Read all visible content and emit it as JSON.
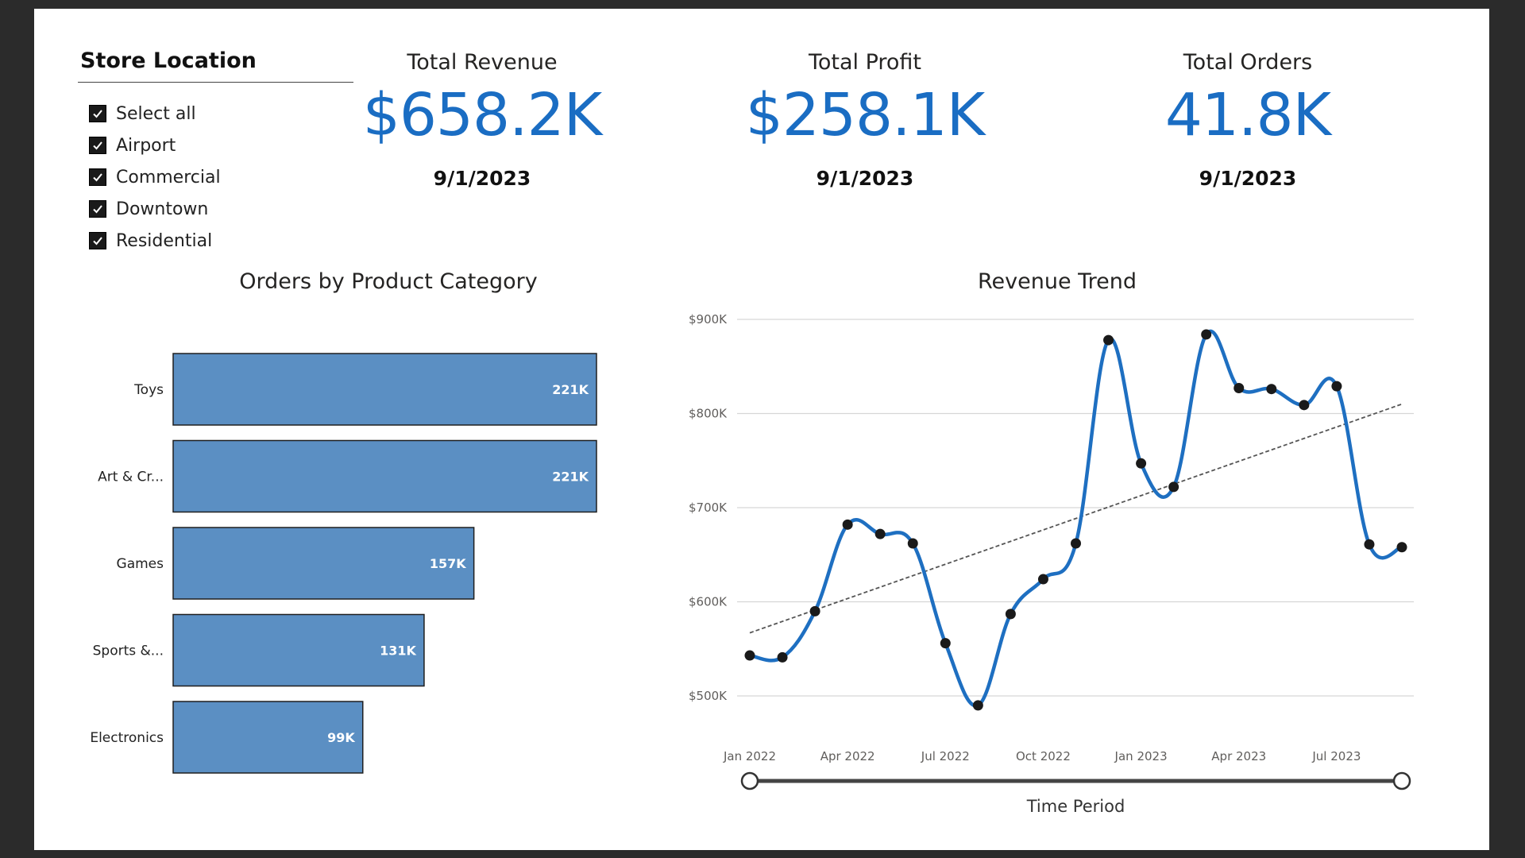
{
  "slicer": {
    "title": "Store Location",
    "items": [
      {
        "label": "Select all",
        "checked": true
      },
      {
        "label": "Airport",
        "checked": true
      },
      {
        "label": "Commercial",
        "checked": true
      },
      {
        "label": "Downtown",
        "checked": true
      },
      {
        "label": "Residential",
        "checked": true
      }
    ]
  },
  "kpis": [
    {
      "title": "Total Revenue",
      "value": "$658.2K",
      "date": "9/1/2023"
    },
    {
      "title": "Total Profit",
      "value": "$258.1K",
      "date": "9/1/2023"
    },
    {
      "title": "Total Orders",
      "value": "41.8K",
      "date": "9/1/2023"
    }
  ],
  "colors": {
    "accent": "#1a6dc3",
    "bar": "#5b8fc3",
    "line": "#1e6fc1"
  },
  "chart_data": [
    {
      "type": "bar",
      "title": "Orders by Product Category",
      "categories": [
        "Toys",
        "Art & Cr...",
        "Games",
        "Sports &...",
        "Electronics"
      ],
      "values": [
        221,
        221,
        157,
        131,
        99
      ],
      "data_labels": [
        "221K",
        "221K",
        "157K",
        "131K",
        "99K"
      ],
      "xlim": [
        0,
        221
      ]
    },
    {
      "type": "line",
      "title": "Revenue Trend",
      "xlabel": "Time Period",
      "x_ticks": [
        "Jan 2022",
        "Apr 2022",
        "Jul 2022",
        "Oct 2022",
        "Jan 2023",
        "Apr 2023",
        "Jul 2023"
      ],
      "y_ticks": [
        "$900K",
        "$800K",
        "$700K",
        "$600K",
        "$500K"
      ],
      "y_tick_values": [
        900,
        800,
        700,
        600,
        500
      ],
      "ylim": [
        490,
        900
      ],
      "x": [
        "Jan 2022",
        "Feb 2022",
        "Mar 2022",
        "Apr 2022",
        "May 2022",
        "Jun 2022",
        "Jul 2022",
        "Aug 2022",
        "Sep 2022",
        "Oct 2022",
        "Nov 2022",
        "Dec 2022",
        "Jan 2023",
        "Feb 2023",
        "Mar 2023",
        "Apr 2023",
        "May 2023",
        "Jun 2023",
        "Jul 2023",
        "Aug 2023",
        "Sep 2023"
      ],
      "series": [
        {
          "name": "Revenue",
          "values": [
            543,
            541,
            590,
            682,
            672,
            662,
            556,
            490,
            587,
            624,
            662,
            878,
            747,
            722,
            884,
            827,
            826,
            809,
            829,
            661,
            658
          ]
        }
      ],
      "trend": {
        "start": 567,
        "end": 810
      }
    }
  ]
}
